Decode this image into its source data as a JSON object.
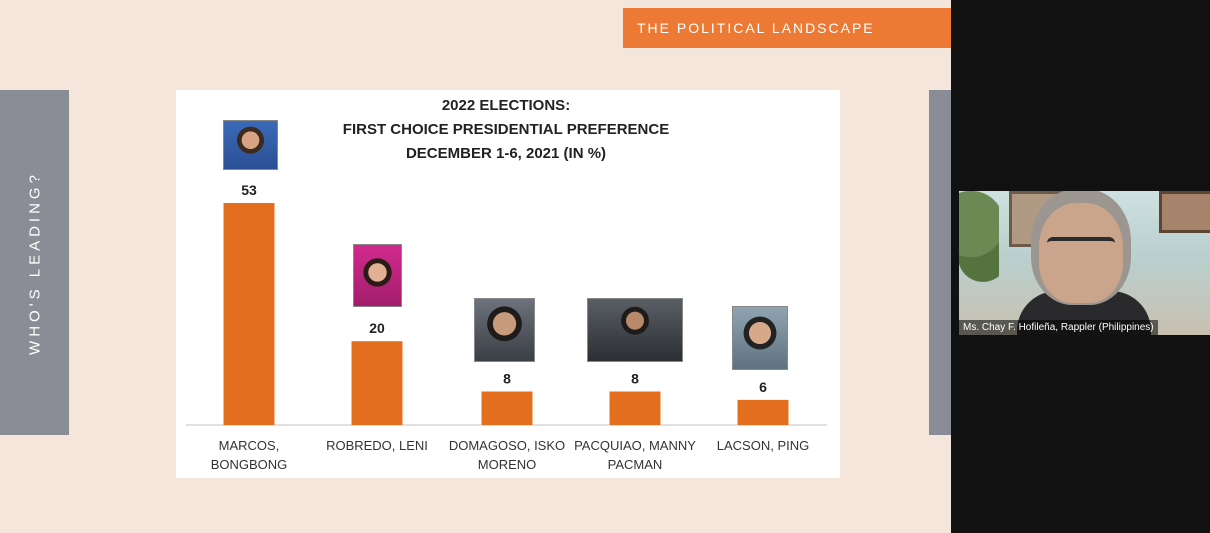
{
  "banner": {
    "text": "THE POLITICAL LANDSCAPE"
  },
  "side_label": "WHO'S LEADING?",
  "video": {
    "caption": "Ms. Chay F. Hofileña, Rappler (Philippines)"
  },
  "colors": {
    "bar": "#e36f1e",
    "banner": "#ec7a34",
    "slide_bg": "#f5e6dc"
  },
  "chart_data": {
    "type": "bar",
    "title": [
      "2022 ELECTIONS:",
      "FIRST CHOICE PRESIDENTIAL PREFERENCE",
      "DECEMBER 1-6, 2021 (IN %)"
    ],
    "categories": [
      [
        "MARCOS,",
        "BONGBONG"
      ],
      [
        "ROBREDO, LENI"
      ],
      [
        "DOMAGOSO, ISKO",
        "MORENO"
      ],
      [
        "PACQUIAO, MANNY",
        "PACMAN"
      ],
      [
        "LACSON, PING"
      ]
    ],
    "values": [
      53,
      20,
      8,
      8,
      6
    ],
    "data_labels": [
      "53",
      "20",
      "8",
      "8",
      "6"
    ],
    "ylim": [
      0,
      53
    ],
    "xlabel": "",
    "ylabel": "",
    "grid": false,
    "legend": false
  }
}
